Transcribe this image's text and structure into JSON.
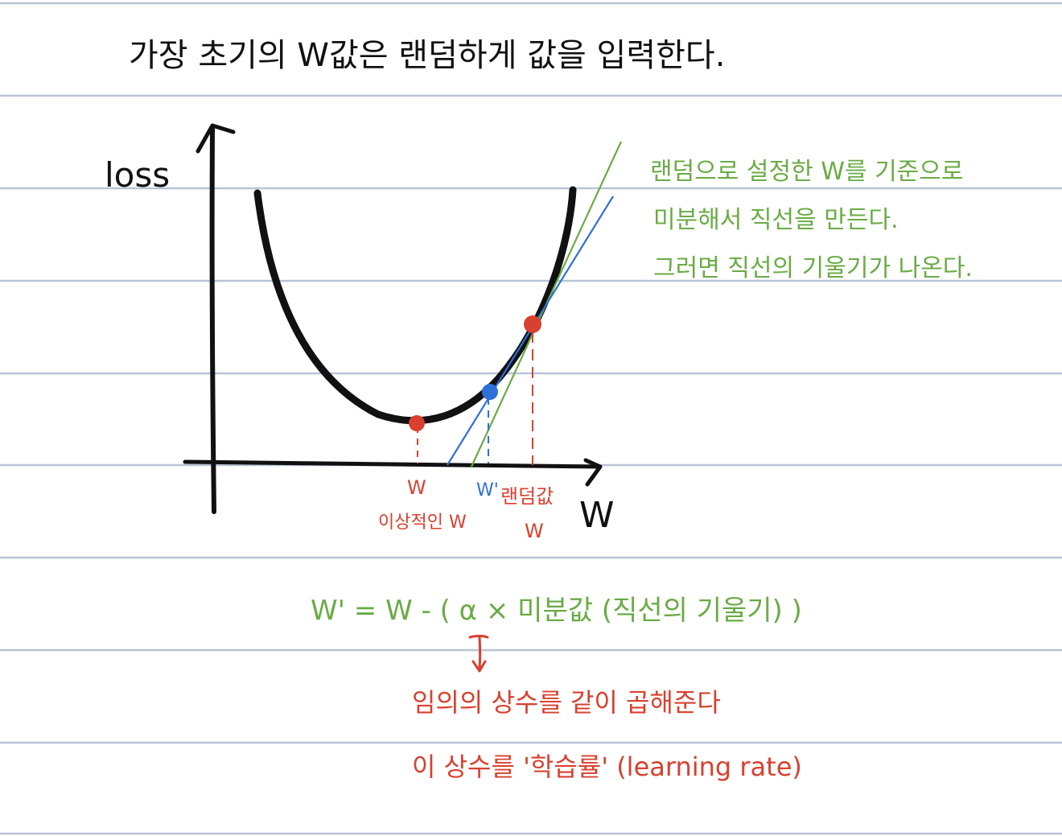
{
  "title": "가장 초기의 W값은 랜덤하게 값을 입력한다.",
  "axes": {
    "y_label": "loss",
    "x_label": "W"
  },
  "points": {
    "optimal_w": "W",
    "optimal_caption": "이상적인 W",
    "updated_w": "W'",
    "random_caption": "랜덤값",
    "random_w": "W"
  },
  "notes": {
    "line1": "랜덤으로 설정한 W를 기준으로",
    "line2": "미분해서 직선을 만든다.",
    "line3": "그러면 직선의 기울기가 나온다."
  },
  "formula": "W' = W - ( α × 미분값 (직선의 기울기) )",
  "explanation": {
    "line1": "임의의 상수를 같이 곱해준다",
    "line2": "이 상수를 '학습률' (learning rate)"
  },
  "colors": {
    "ruled_line": "#b9c3d6",
    "ink": "#111111",
    "green": "#6aab45",
    "red": "#d8412f",
    "blue": "#2f6fd8"
  }
}
